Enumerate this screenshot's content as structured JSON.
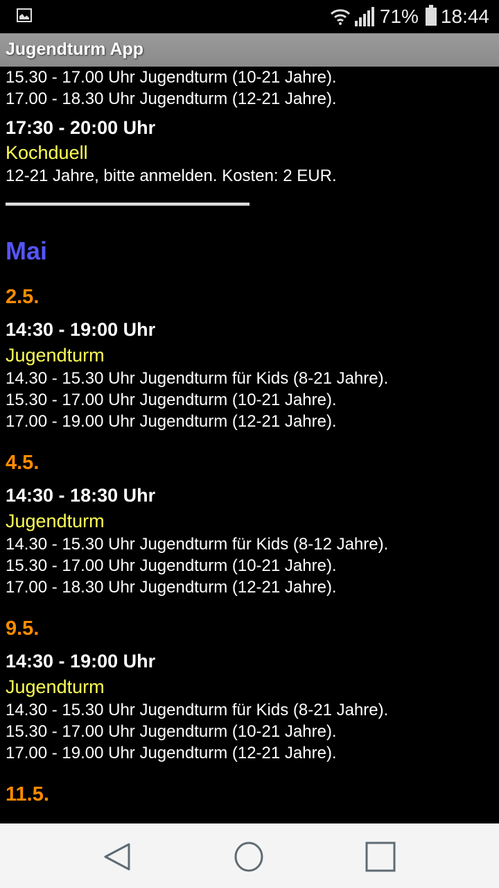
{
  "status_bar": {
    "battery": "71%",
    "time": "18:44",
    "icons": [
      "gallery-icon",
      "wifi-icon",
      "signal-icon",
      "battery-icon"
    ]
  },
  "app_bar": {
    "title": "Jugendturm App"
  },
  "top_fragment": {
    "lines": [
      "15.30 - 17.00 Uhr Jugendturm (10-21 Jahre).",
      "17.00 - 18.30 Uhr Jugendturm (12-21 Jahre)."
    ],
    "event": {
      "time": "17:30 - 20:00 Uhr",
      "title": "Kochduell",
      "lines": [
        "12-21 Jahre, bitte anmelden. Kosten: 2 EUR."
      ]
    }
  },
  "month": "Mai",
  "days": [
    {
      "date": "2.5.",
      "time": "14:30 - 19:00 Uhr",
      "title": "Jugendturm",
      "lines": [
        "14.30 - 15.30 Uhr Jugendturm für Kids (8-21 Jahre).",
        "15.30 - 17.00 Uhr Jugendturm (10-21 Jahre).",
        "17.00 - 19.00 Uhr Jugendturm (12-21 Jahre)."
      ]
    },
    {
      "date": "4.5.",
      "time": "14:30 - 18:30 Uhr",
      "title": "Jugendturm",
      "lines": [
        "14.30 - 15.30 Uhr Jugendturm für Kids (8-12 Jahre).",
        "15.30 - 17.00 Uhr Jugendturm (10-21 Jahre).",
        "17.00 - 18.30 Uhr Jugendturm (12-21 Jahre)."
      ]
    },
    {
      "date": "9.5.",
      "time": "14:30 - 19:00 Uhr",
      "title": "Jugendturm",
      "lines": [
        "14.30 - 15.30 Uhr Jugendturm für Kids (8-21 Jahre).",
        "15.30 - 17.00 Uhr Jugendturm (10-21 Jahre).",
        "17.00 - 19.00 Uhr Jugendturm (12-21 Jahre)."
      ]
    },
    {
      "date": "11.5."
    }
  ],
  "colors": {
    "month": "#5555ff",
    "date": "#ff8c00",
    "event_title": "#ffff55",
    "app_bar": "#909090"
  },
  "nav_bar": {
    "icons": [
      "back-icon",
      "home-icon",
      "recents-icon"
    ]
  }
}
